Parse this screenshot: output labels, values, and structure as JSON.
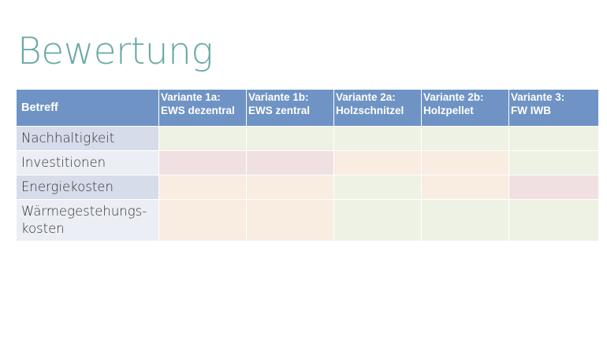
{
  "title": "Bewertung",
  "table": {
    "headers": [
      {
        "line1": "Betreff",
        "line2": ""
      },
      {
        "line1": "Variante 1a:",
        "line2": "EWS dezentral"
      },
      {
        "line1": "Variante 1b:",
        "line2": "EWS zentral"
      },
      {
        "line1": "Variante 2a:",
        "line2": "Holzschnitzel"
      },
      {
        "line1": "Variante 2b:",
        "line2": "Holzpellet"
      },
      {
        "line1": "Variante 3:",
        "line2": "FW IWB"
      }
    ],
    "rows": [
      {
        "label_line1": "Nachhaltigkeit",
        "label_line2": ""
      },
      {
        "label_line1": "Investitionen",
        "label_line2": ""
      },
      {
        "label_line1": "Energiekosten",
        "label_line2": ""
      },
      {
        "label_line1": "Wärmegestehungs-",
        "label_line2": "kosten"
      }
    ]
  },
  "rating_colors": {
    "green": "#eef2e4",
    "orange": "#f9ece0",
    "red": "#f1e0e2"
  },
  "ratings": [
    [
      "green",
      "green",
      "green",
      "green",
      "green"
    ],
    [
      "red",
      "red",
      "orange",
      "orange",
      "green"
    ],
    [
      "orange",
      "orange",
      "green",
      "orange",
      "red"
    ],
    [
      "orange",
      "orange",
      "green",
      "green",
      "green"
    ]
  ]
}
